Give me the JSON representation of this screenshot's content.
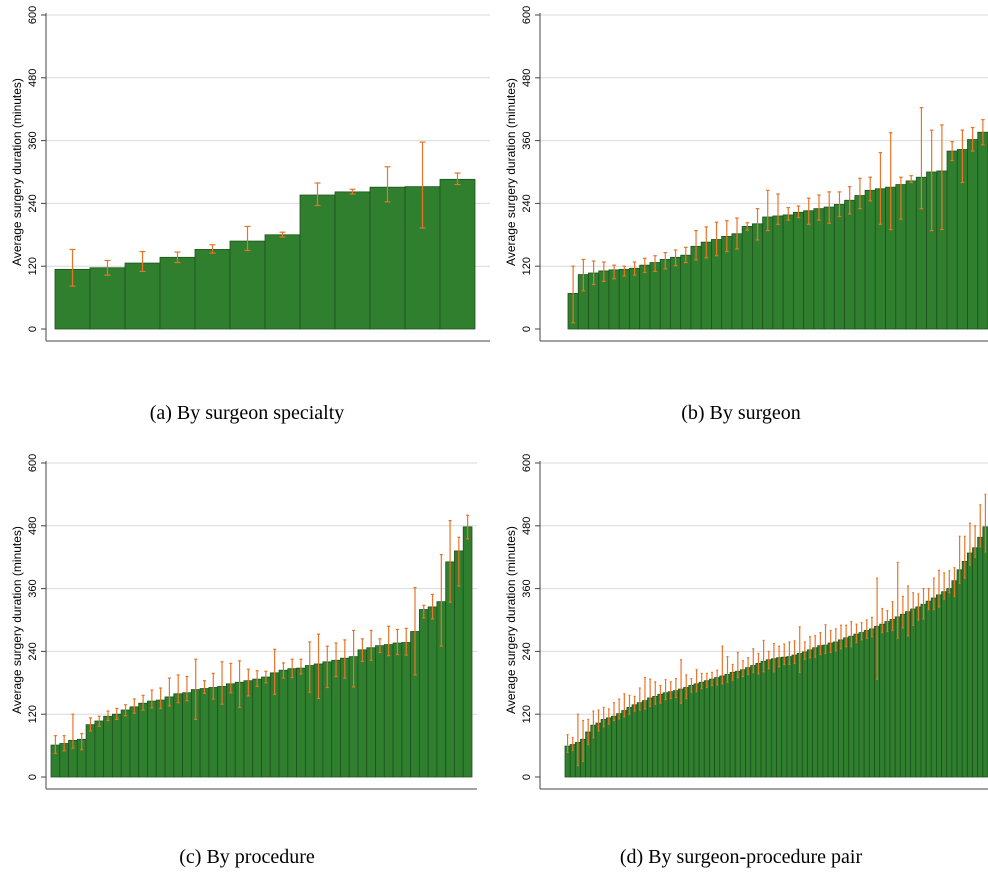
{
  "captions": {
    "a": "(a) By surgeon specialty",
    "b": "(b) By surgeon",
    "c": "(c) By procedure",
    "d": "(d) By surgeon-procedure pair"
  },
  "colors": {
    "bar": "#2f7f2f",
    "bar_edge": "#1c521c",
    "error": "#e8742a",
    "grid": "#d9d9d9",
    "axis": "#444444"
  },
  "chart_data": [
    {
      "id": "a",
      "type": "bar",
      "ylabel": "Average surgery duration (minutes)",
      "yticks": [
        0,
        120,
        240,
        360,
        480,
        600
      ],
      "ylim": [
        0,
        600
      ],
      "values": [
        114,
        117,
        126,
        137,
        152,
        168,
        180,
        256,
        262,
        271,
        272,
        286
      ],
      "err_low": [
        82,
        103,
        110,
        127,
        145,
        150,
        176,
        236,
        258,
        243,
        193,
        276
      ],
      "err_high": [
        152,
        131,
        148,
        147,
        161,
        196,
        185,
        279,
        267,
        310,
        357,
        298
      ]
    },
    {
      "id": "b",
      "type": "bar",
      "ylabel": "Average surgery duration (minutes)",
      "yticks": [
        0,
        120,
        240,
        360,
        480,
        600
      ],
      "ylim": [
        0,
        600
      ],
      "values": [
        68,
        104,
        107,
        111,
        113,
        114,
        116,
        122,
        127,
        133,
        137,
        141,
        158,
        166,
        171,
        177,
        182,
        196,
        201,
        214,
        216,
        218,
        223,
        226,
        230,
        233,
        238,
        246,
        255,
        265,
        268,
        271,
        276,
        283,
        290,
        300,
        302,
        340,
        343,
        362,
        376
      ],
      "err_low": [
        12,
        73,
        85,
        91,
        96,
        101,
        103,
        108,
        110,
        115,
        121,
        127,
        132,
        136,
        140,
        148,
        153,
        189,
        170,
        188,
        200,
        208,
        213,
        200,
        208,
        202,
        215,
        220,
        230,
        245,
        200,
        190,
        210,
        280,
        230,
        188,
        190,
        322,
        280,
        340,
        352
      ],
      "err_high": [
        120,
        133,
        130,
        128,
        122,
        120,
        128,
        135,
        140,
        146,
        151,
        156,
        188,
        195,
        204,
        207,
        212,
        203,
        230,
        265,
        258,
        232,
        235,
        250,
        256,
        262,
        262,
        272,
        288,
        290,
        337,
        375,
        290,
        293,
        423,
        380,
        390,
        358,
        380,
        385,
        400
      ]
    },
    {
      "id": "c",
      "type": "bar",
      "ylabel": "Average surgery duration (minutes)",
      "yticks": [
        0,
        120,
        240,
        360,
        480,
        600
      ],
      "ylim": [
        0,
        600
      ],
      "values": [
        61,
        64,
        70,
        72,
        100,
        107,
        116,
        120,
        128,
        134,
        141,
        145,
        147,
        153,
        159,
        161,
        167,
        169,
        171,
        173,
        178,
        181,
        184,
        187,
        191,
        199,
        204,
        207,
        208,
        213,
        216,
        220,
        223,
        227,
        230,
        243,
        247,
        251,
        253,
        256,
        257,
        278,
        320,
        325,
        335,
        411,
        432,
        478
      ],
      "err_low": [
        45,
        50,
        55,
        52,
        88,
        97,
        108,
        110,
        117,
        122,
        128,
        132,
        131,
        136,
        142,
        146,
        110,
        160,
        149,
        139,
        161,
        133,
        155,
        173,
        180,
        158,
        189,
        190,
        197,
        162,
        150,
        171,
        192,
        189,
        172,
        221,
        223,
        238,
        232,
        234,
        233,
        195,
        304,
        302,
        250,
        334,
        365,
        455
      ],
      "err_high": [
        79,
        79,
        120,
        83,
        113,
        116,
        126,
        131,
        138,
        149,
        156,
        166,
        170,
        189,
        195,
        192,
        225,
        184,
        198,
        220,
        217,
        222,
        206,
        203,
        202,
        244,
        218,
        225,
        225,
        258,
        273,
        250,
        256,
        262,
        280,
        264,
        280,
        264,
        288,
        282,
        284,
        362,
        328,
        349,
        425,
        490,
        458,
        500
      ]
    },
    {
      "id": "d",
      "type": "bar",
      "ylabel": "Average surgery duration (minutes)",
      "yticks": [
        0,
        120,
        240,
        360,
        480,
        600
      ],
      "ylim": [
        0,
        600
      ],
      "values": [
        59,
        62,
        66,
        72,
        86,
        99,
        103,
        110,
        113,
        116,
        121,
        127,
        133,
        138,
        142,
        146,
        151,
        154,
        158,
        161,
        163,
        165,
        168,
        171,
        175,
        178,
        181,
        184,
        187,
        190,
        193,
        196,
        200,
        202,
        205,
        209,
        213,
        217,
        221,
        224,
        226,
        228,
        229,
        230,
        233,
        236,
        239,
        243,
        247,
        251,
        252,
        256,
        258,
        262,
        266,
        269,
        273,
        276,
        280,
        283,
        288,
        292,
        297,
        301,
        306,
        311,
        316,
        321,
        325,
        330,
        336,
        342,
        348,
        354,
        360,
        375,
        396,
        412,
        428,
        438,
        458,
        478
      ],
      "err_low": [
        47,
        51,
        22,
        30,
        62,
        75,
        88,
        96,
        101,
        108,
        111,
        115,
        120,
        126,
        128,
        130,
        135,
        139,
        141,
        148,
        150,
        152,
        141,
        150,
        162,
        163,
        169,
        171,
        175,
        176,
        178,
        181,
        185,
        190,
        192,
        196,
        200,
        197,
        201,
        207,
        201,
        211,
        215,
        215,
        217,
        200,
        225,
        228,
        229,
        234,
        236,
        238,
        241,
        245,
        249,
        249,
        257,
        262,
        265,
        268,
        187,
        276,
        278,
        280,
        265,
        285,
        270,
        290,
        300,
        302,
        320,
        320,
        325,
        340,
        352,
        345,
        370,
        380,
        405,
        420,
        440,
        430
      ],
      "err_high": [
        81,
        75,
        120,
        108,
        110,
        126,
        128,
        133,
        130,
        142,
        149,
        159,
        156,
        154,
        170,
        190,
        187,
        182,
        175,
        186,
        182,
        188,
        224,
        195,
        188,
        205,
        198,
        198,
        200,
        204,
        250,
        230,
        215,
        238,
        222,
        228,
        245,
        236,
        261,
        240,
        255,
        250,
        254,
        258,
        260,
        287,
        258,
        268,
        270,
        276,
        291,
        280,
        283,
        290,
        290,
        297,
        292,
        295,
        300,
        305,
        380,
        322,
        318,
        335,
        410,
        345,
        365,
        352,
        350,
        360,
        360,
        380,
        395,
        390,
        394,
        400,
        460,
        460,
        485,
        480,
        520,
        540
      ]
    }
  ]
}
